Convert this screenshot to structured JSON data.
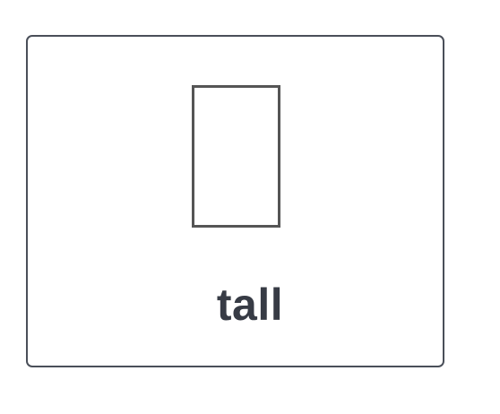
{
  "card": {
    "label": "tall",
    "icon": "tall-rectangle-icon",
    "border_color": "#4a4f59",
    "icon_color": "#555555",
    "text_color": "#373b45"
  }
}
